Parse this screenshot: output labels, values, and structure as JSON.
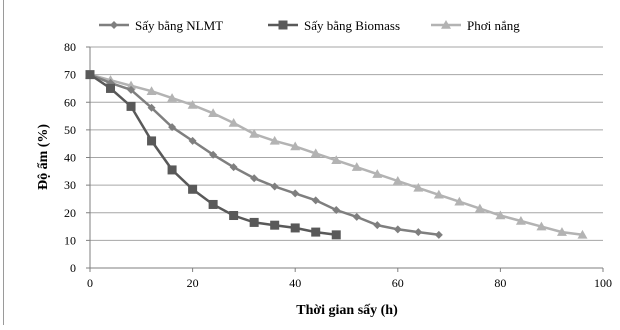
{
  "chart_data": {
    "type": "line",
    "title": "",
    "xlabel": "Thời gian sấy (h)",
    "ylabel": "Độ ẩm (%)",
    "xlim": [
      0,
      100
    ],
    "ylim": [
      0,
      80
    ],
    "xticks": [
      0,
      20,
      40,
      60,
      80,
      100
    ],
    "yticks": [
      0,
      10,
      20,
      30,
      40,
      50,
      60,
      70,
      80
    ],
    "grid": "horizontal",
    "legend_position": "top",
    "series": [
      {
        "name": "Sấy bằng NLMT",
        "color": "#7f7f7f",
        "marker": "diamond",
        "points": [
          {
            "x": 0,
            "y": 70
          },
          {
            "x": 4,
            "y": 67
          },
          {
            "x": 8,
            "y": 64.5
          },
          {
            "x": 12,
            "y": 58
          },
          {
            "x": 16,
            "y": 51
          },
          {
            "x": 20,
            "y": 46
          },
          {
            "x": 24,
            "y": 41
          },
          {
            "x": 28,
            "y": 36.5
          },
          {
            "x": 32,
            "y": 32.5
          },
          {
            "x": 36,
            "y": 29.5
          },
          {
            "x": 40,
            "y": 27
          },
          {
            "x": 44,
            "y": 24.5
          },
          {
            "x": 48,
            "y": 21
          },
          {
            "x": 52,
            "y": 18.5
          },
          {
            "x": 56,
            "y": 15.5
          },
          {
            "x": 60,
            "y": 14
          },
          {
            "x": 64,
            "y": 13
          },
          {
            "x": 68,
            "y": 12
          }
        ]
      },
      {
        "name": "Sấy bằng Biomass",
        "color": "#595959",
        "marker": "square",
        "points": [
          {
            "x": 0,
            "y": 70
          },
          {
            "x": 4,
            "y": 65
          },
          {
            "x": 8,
            "y": 58.5
          },
          {
            "x": 12,
            "y": 46
          },
          {
            "x": 16,
            "y": 35.5
          },
          {
            "x": 20,
            "y": 28.5
          },
          {
            "x": 24,
            "y": 23
          },
          {
            "x": 28,
            "y": 19
          },
          {
            "x": 32,
            "y": 16.5
          },
          {
            "x": 36,
            "y": 15.5
          },
          {
            "x": 40,
            "y": 14.5
          },
          {
            "x": 44,
            "y": 13
          },
          {
            "x": 48,
            "y": 12
          }
        ]
      },
      {
        "name": "Phơi nắng",
        "color": "#b3b3b3",
        "marker": "triangle",
        "points": [
          {
            "x": 0,
            "y": 70
          },
          {
            "x": 4,
            "y": 68
          },
          {
            "x": 8,
            "y": 66
          },
          {
            "x": 12,
            "y": 64
          },
          {
            "x": 16,
            "y": 61.5
          },
          {
            "x": 20,
            "y": 59
          },
          {
            "x": 24,
            "y": 56
          },
          {
            "x": 28,
            "y": 52.5
          },
          {
            "x": 32,
            "y": 48.5
          },
          {
            "x": 36,
            "y": 46
          },
          {
            "x": 40,
            "y": 44
          },
          {
            "x": 44,
            "y": 41.5
          },
          {
            "x": 48,
            "y": 39
          },
          {
            "x": 52,
            "y": 36.5
          },
          {
            "x": 56,
            "y": 34
          },
          {
            "x": 60,
            "y": 31.5
          },
          {
            "x": 64,
            "y": 29
          },
          {
            "x": 68,
            "y": 26.5
          },
          {
            "x": 72,
            "y": 24
          },
          {
            "x": 76,
            "y": 21.5
          },
          {
            "x": 80,
            "y": 19
          },
          {
            "x": 84,
            "y": 17
          },
          {
            "x": 88,
            "y": 15
          },
          {
            "x": 92,
            "y": 13
          },
          {
            "x": 96,
            "y": 12
          }
        ]
      }
    ]
  }
}
